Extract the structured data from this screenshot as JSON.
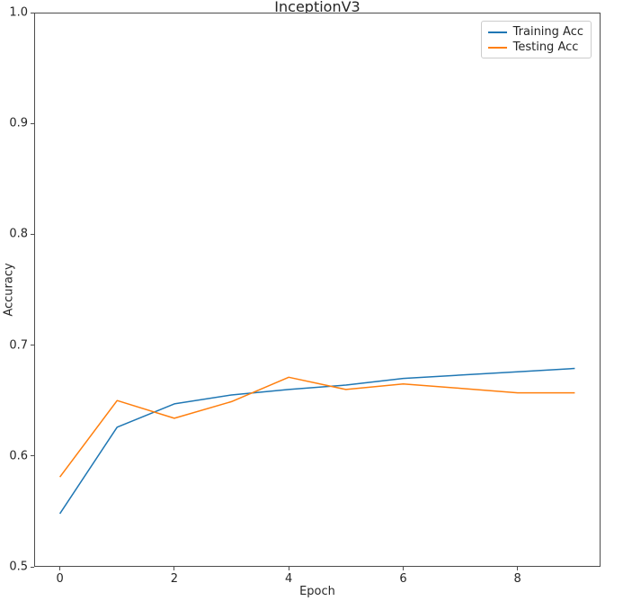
{
  "title": "InceptionV3",
  "axes": {
    "x": {
      "label": "Epoch",
      "ticks": [
        "0",
        "2",
        "4",
        "6",
        "8"
      ],
      "tick_values": [
        0,
        2,
        4,
        6,
        8
      ]
    },
    "y": {
      "label": "Accuracy",
      "ticks": [
        "1.0",
        "0.9",
        "0.8",
        "0.7",
        "0.6",
        "0.5"
      ],
      "tick_values": [
        1.0,
        0.9,
        0.8,
        0.7,
        0.6,
        0.5
      ]
    }
  },
  "legend": {
    "entries": [
      {
        "label": "Training Acc"
      },
      {
        "label": "Testing Acc"
      }
    ]
  },
  "chart_data": {
    "type": "line",
    "title": "InceptionV3",
    "xlabel": "Epoch",
    "ylabel": "Accuracy",
    "x": [
      0,
      1,
      2,
      3,
      4,
      5,
      6,
      7,
      8,
      9
    ],
    "series": [
      {
        "name": "Training Acc",
        "color": "#1f77b4",
        "values": [
          0.548,
          0.626,
          0.647,
          0.655,
          0.66,
          0.664,
          0.67,
          0.673,
          0.676,
          0.679
        ]
      },
      {
        "name": "Testing Acc",
        "color": "#ff7f0e",
        "values": [
          0.581,
          0.65,
          0.634,
          0.649,
          0.671,
          0.66,
          0.665,
          0.661,
          0.657,
          0.657
        ]
      }
    ],
    "xlim": [
      -0.45,
      9.45
    ],
    "ylim": [
      0.5,
      1.0
    ],
    "grid": false,
    "legend_position": "upper right"
  }
}
